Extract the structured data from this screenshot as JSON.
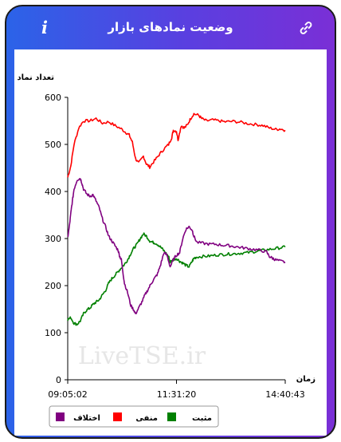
{
  "header": {
    "title": "وضعیت نمادهای بازار",
    "info_label": "i"
  },
  "chart_data": {
    "type": "line",
    "title": "",
    "ylabel": "تعداد نماد",
    "xlabel": "زمان",
    "ylim": [
      0,
      600
    ],
    "y_ticks": [
      0,
      100,
      200,
      300,
      400,
      500,
      600
    ],
    "x_ticks": [
      "09:05:02",
      "11:31:20",
      "14:40:43"
    ],
    "watermark": "LiveTSE.ir",
    "legend_position": "bottom",
    "grid": false,
    "series": [
      {
        "name": "منفی",
        "color": "#ff0000",
        "points": [
          [
            0,
            430
          ],
          [
            0.02,
            455
          ],
          [
            0.04,
            500
          ],
          [
            0.07,
            535
          ],
          [
            0.1,
            550
          ],
          [
            0.14,
            550
          ],
          [
            0.18,
            555
          ],
          [
            0.22,
            545
          ],
          [
            0.26,
            548
          ],
          [
            0.3,
            540
          ],
          [
            0.34,
            533
          ],
          [
            0.37,
            525
          ],
          [
            0.39,
            520
          ],
          [
            0.41,
            505
          ],
          [
            0.43,
            470
          ],
          [
            0.45,
            460
          ],
          [
            0.48,
            475
          ],
          [
            0.5,
            458
          ],
          [
            0.52,
            452
          ],
          [
            0.55,
            465
          ],
          [
            0.58,
            478
          ],
          [
            0.61,
            490
          ],
          [
            0.64,
            500
          ],
          [
            0.66,
            515
          ],
          [
            0.67,
            530
          ],
          [
            0.69,
            528
          ],
          [
            0.7,
            510
          ],
          [
            0.72,
            540
          ],
          [
            0.74,
            535
          ],
          [
            0.76,
            542
          ],
          [
            0.78,
            555
          ],
          [
            0.8,
            565
          ],
          [
            0.83,
            562
          ],
          [
            0.85,
            555
          ],
          [
            0.88,
            550
          ],
          [
            0.92,
            552
          ],
          [
            0.96,
            550
          ],
          [
            1.0,
            548
          ],
          [
            1.05,
            549
          ],
          [
            1.1,
            547
          ],
          [
            1.15,
            544
          ],
          [
            1.2,
            542
          ],
          [
            1.24,
            540
          ],
          [
            1.28,
            535
          ],
          [
            1.32,
            532
          ],
          [
            1.35,
            533
          ],
          [
            1.38,
            530
          ]
        ]
      },
      {
        "name": "مثبت",
        "color": "#008000",
        "points": [
          [
            0,
            128
          ],
          [
            0.02,
            132
          ],
          [
            0.04,
            120
          ],
          [
            0.06,
            118
          ],
          [
            0.08,
            125
          ],
          [
            0.1,
            140
          ],
          [
            0.12,
            148
          ],
          [
            0.14,
            152
          ],
          [
            0.16,
            160
          ],
          [
            0.18,
            165
          ],
          [
            0.2,
            170
          ],
          [
            0.22,
            180
          ],
          [
            0.24,
            190
          ],
          [
            0.26,
            205
          ],
          [
            0.28,
            215
          ],
          [
            0.3,
            222
          ],
          [
            0.32,
            230
          ],
          [
            0.34,
            238
          ],
          [
            0.36,
            245
          ],
          [
            0.38,
            255
          ],
          [
            0.4,
            268
          ],
          [
            0.42,
            280
          ],
          [
            0.44,
            288
          ],
          [
            0.46,
            300
          ],
          [
            0.48,
            310
          ],
          [
            0.5,
            305
          ],
          [
            0.52,
            295
          ],
          [
            0.54,
            292
          ],
          [
            0.56,
            290
          ],
          [
            0.58,
            285
          ],
          [
            0.6,
            278
          ],
          [
            0.62,
            270
          ],
          [
            0.64,
            262
          ],
          [
            0.65,
            250
          ],
          [
            0.67,
            255
          ],
          [
            0.69,
            258
          ],
          [
            0.71,
            252
          ],
          [
            0.73,
            248
          ],
          [
            0.75,
            243
          ],
          [
            0.77,
            240
          ],
          [
            0.79,
            252
          ],
          [
            0.8,
            258
          ],
          [
            0.82,
            261
          ],
          [
            0.86,
            262
          ],
          [
            0.9,
            263
          ],
          [
            0.94,
            265
          ],
          [
            0.98,
            266
          ],
          [
            1.02,
            267
          ],
          [
            1.06,
            268
          ],
          [
            1.1,
            269
          ],
          [
            1.14,
            270
          ],
          [
            1.18,
            272
          ],
          [
            1.22,
            274
          ],
          [
            1.26,
            276
          ],
          [
            1.3,
            278
          ],
          [
            1.34,
            280
          ],
          [
            1.38,
            282
          ]
        ]
      },
      {
        "name": "اختلاف",
        "color": "#800080",
        "points": [
          [
            0,
            302
          ],
          [
            0.01,
            325
          ],
          [
            0.02,
            355
          ],
          [
            0.03,
            380
          ],
          [
            0.04,
            405
          ],
          [
            0.06,
            425
          ],
          [
            0.08,
            428
          ],
          [
            0.09,
            418
          ],
          [
            0.1,
            405
          ],
          [
            0.12,
            395
          ],
          [
            0.14,
            390
          ],
          [
            0.16,
            393
          ],
          [
            0.18,
            380
          ],
          [
            0.2,
            365
          ],
          [
            0.22,
            342
          ],
          [
            0.24,
            325
          ],
          [
            0.26,
            305
          ],
          [
            0.28,
            295
          ],
          [
            0.3,
            285
          ],
          [
            0.32,
            275
          ],
          [
            0.33,
            262
          ],
          [
            0.34,
            255
          ],
          [
            0.35,
            230
          ],
          [
            0.36,
            205
          ],
          [
            0.38,
            185
          ],
          [
            0.4,
            158
          ],
          [
            0.42,
            148
          ],
          [
            0.43,
            140
          ],
          [
            0.45,
            152
          ],
          [
            0.47,
            165
          ],
          [
            0.49,
            180
          ],
          [
            0.51,
            192
          ],
          [
            0.53,
            205
          ],
          [
            0.55,
            215
          ],
          [
            0.57,
            225
          ],
          [
            0.59,
            245
          ],
          [
            0.61,
            270
          ],
          [
            0.63,
            265
          ],
          [
            0.65,
            240
          ],
          [
            0.67,
            255
          ],
          [
            0.69,
            265
          ],
          [
            0.71,
            270
          ],
          [
            0.73,
            300
          ],
          [
            0.75,
            320
          ],
          [
            0.77,
            325
          ],
          [
            0.79,
            318
          ],
          [
            0.8,
            305
          ],
          [
            0.82,
            292
          ],
          [
            0.86,
            290
          ],
          [
            0.9,
            288
          ],
          [
            0.94,
            288
          ],
          [
            0.98,
            286
          ],
          [
            1.02,
            285
          ],
          [
            1.06,
            283
          ],
          [
            1.1,
            281
          ],
          [
            1.14,
            279
          ],
          [
            1.18,
            277
          ],
          [
            1.22,
            275
          ],
          [
            1.26,
            272
          ],
          [
            1.28,
            262
          ],
          [
            1.3,
            258
          ],
          [
            1.32,
            255
          ],
          [
            1.35,
            252
          ],
          [
            1.38,
            250
          ]
        ]
      }
    ],
    "x_range": [
      0,
      1.38
    ],
    "x_tick_positions": [
      0,
      0.69,
      1.38
    ]
  }
}
